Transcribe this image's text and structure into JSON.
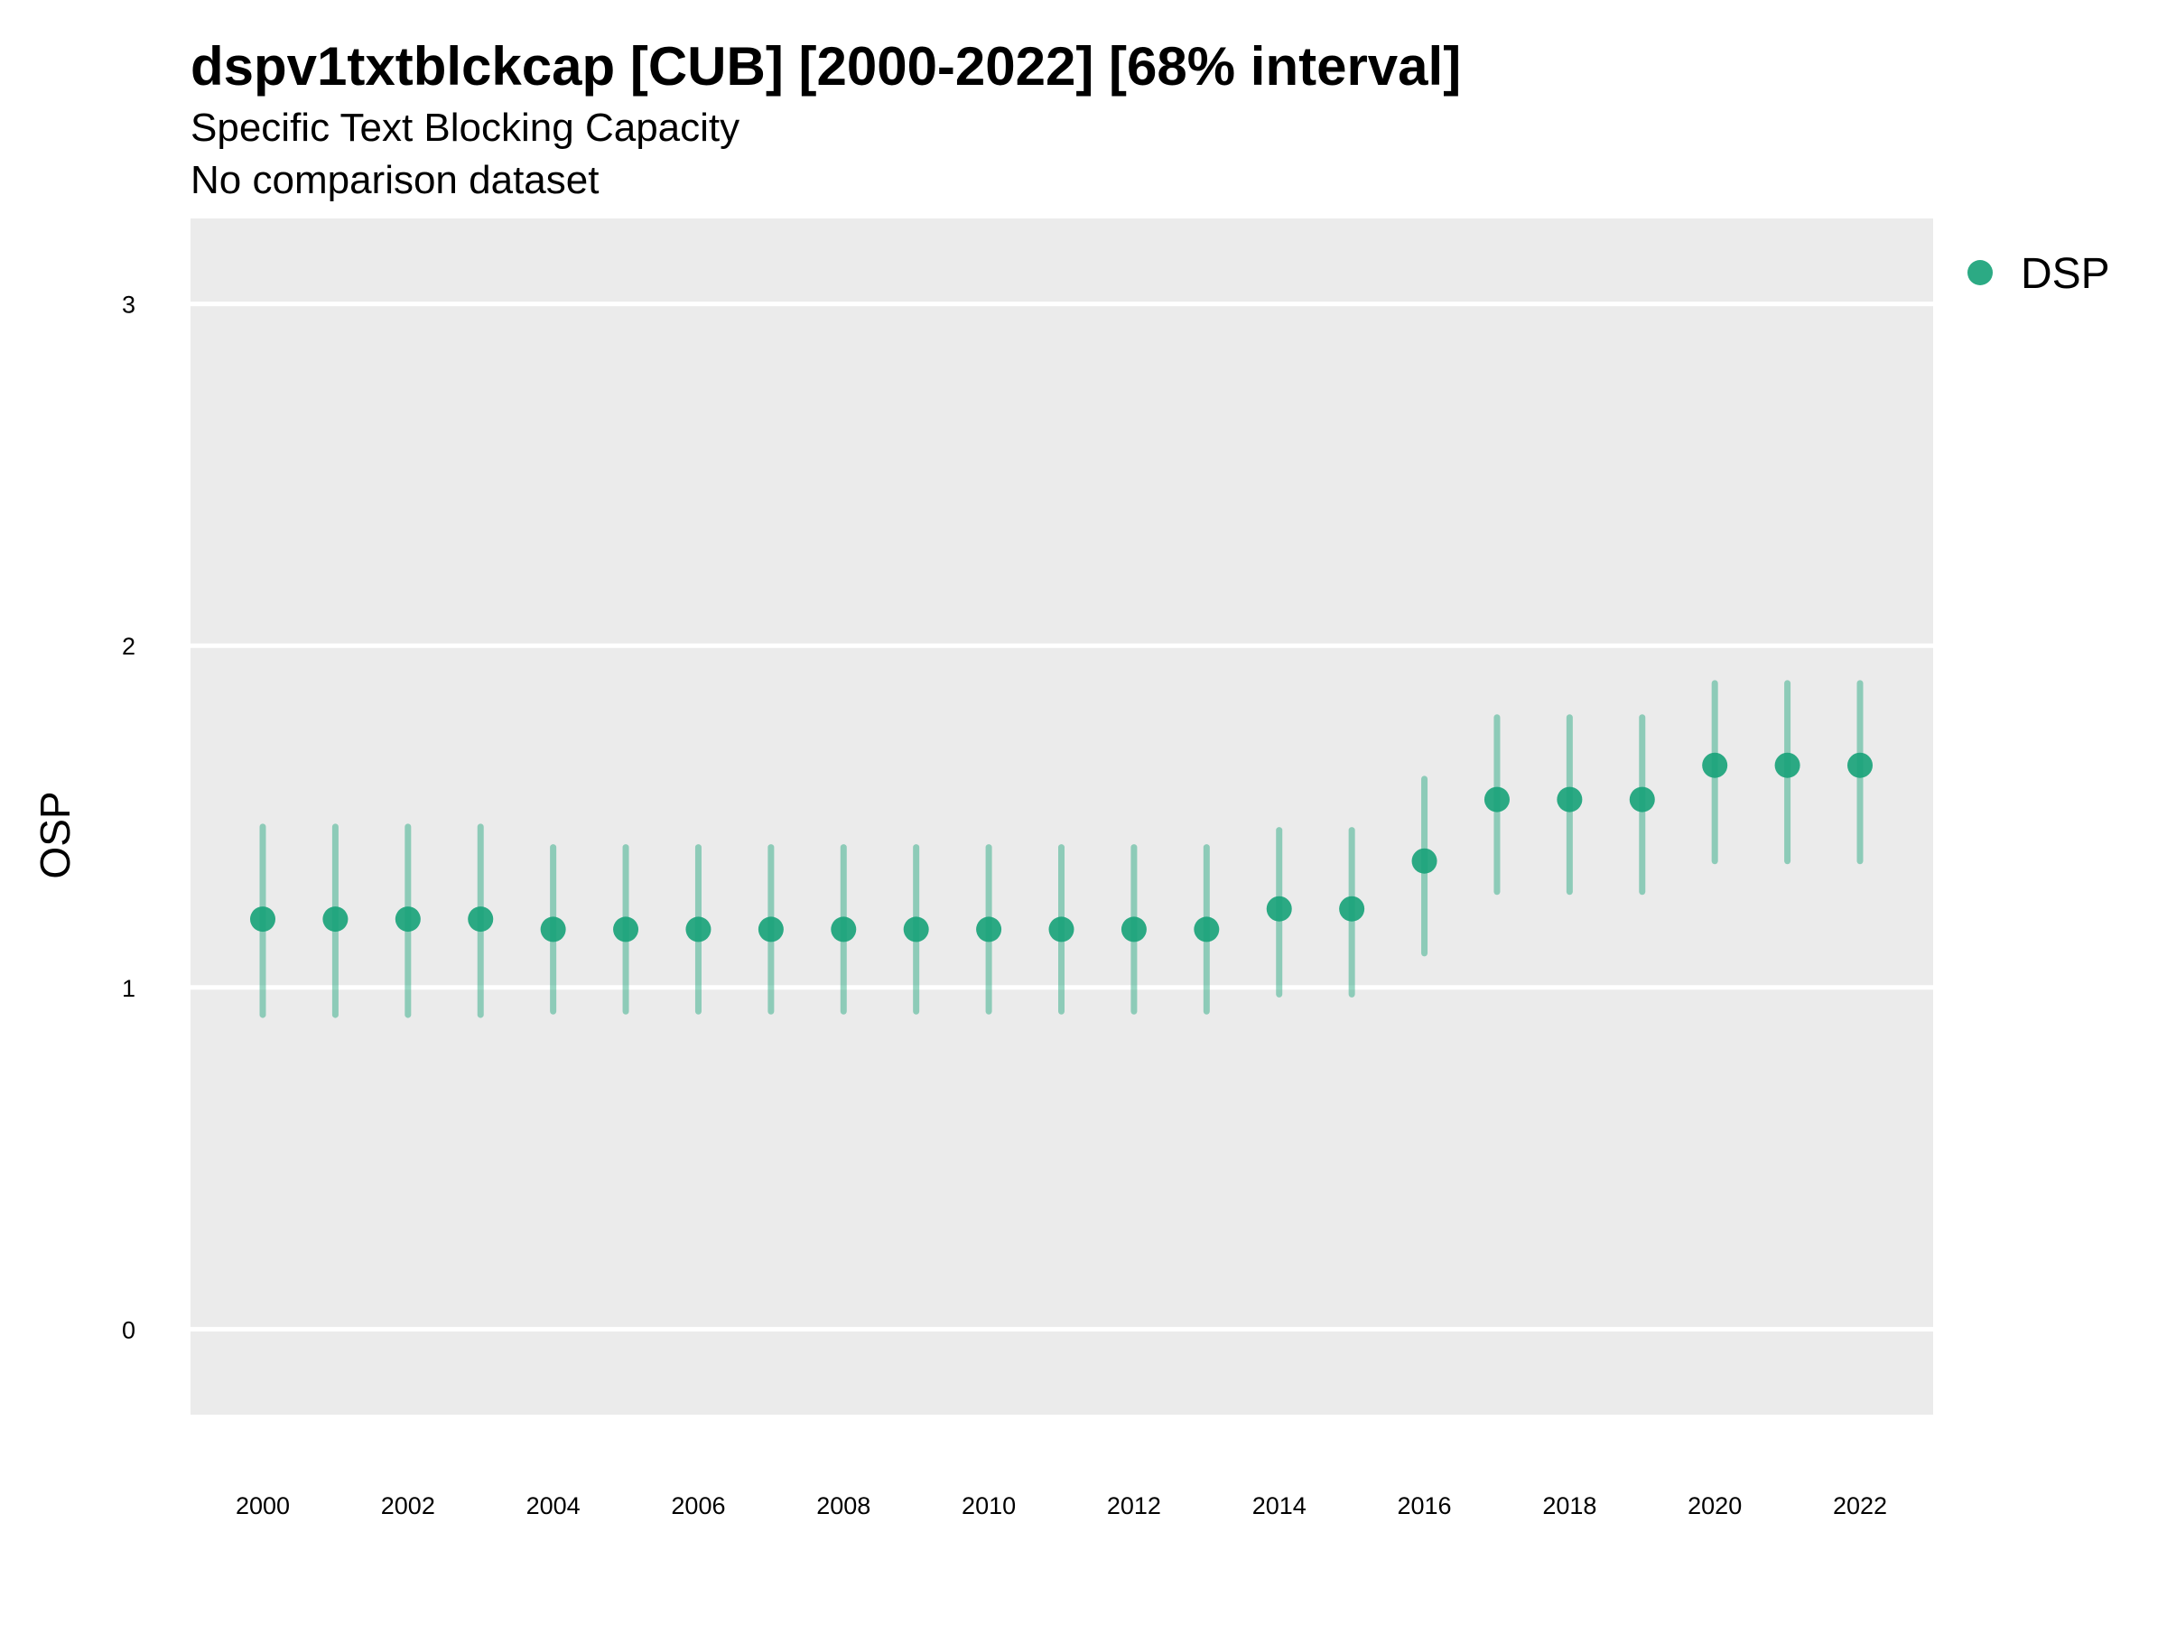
{
  "chart_data": {
    "type": "scatter",
    "title": "dspv1txtblckcap [CUB] [2000-2022] [68% interval]",
    "subtitle": "Specific Text Blocking Capacity",
    "caption_line": "No comparison dataset",
    "xlabel": "",
    "ylabel": "OSP",
    "ylim": [
      -0.25,
      3.25
    ],
    "y_ticks": [
      0,
      1,
      2,
      3
    ],
    "x_ticks": [
      2000,
      2002,
      2004,
      2006,
      2008,
      2010,
      2012,
      2014,
      2016,
      2018,
      2020,
      2022
    ],
    "grid": true,
    "legend_position": "top-right",
    "series": [
      {
        "name": "DSP",
        "color": "#1aa37a",
        "x": [
          2000,
          2001,
          2002,
          2003,
          2004,
          2005,
          2006,
          2007,
          2008,
          2009,
          2010,
          2011,
          2012,
          2013,
          2014,
          2015,
          2016,
          2017,
          2018,
          2019,
          2020,
          2021,
          2022
        ],
        "y": [
          1.2,
          1.2,
          1.2,
          1.2,
          1.17,
          1.17,
          1.17,
          1.17,
          1.17,
          1.17,
          1.17,
          1.17,
          1.17,
          1.17,
          1.23,
          1.23,
          1.37,
          1.55,
          1.55,
          1.55,
          1.65,
          1.65,
          1.65
        ],
        "lower": [
          0.92,
          0.92,
          0.92,
          0.92,
          0.93,
          0.93,
          0.93,
          0.93,
          0.93,
          0.93,
          0.93,
          0.93,
          0.93,
          0.93,
          0.98,
          0.98,
          1.1,
          1.28,
          1.28,
          1.28,
          1.37,
          1.37,
          1.37
        ],
        "upper": [
          1.47,
          1.47,
          1.47,
          1.47,
          1.41,
          1.41,
          1.41,
          1.41,
          1.41,
          1.41,
          1.41,
          1.41,
          1.41,
          1.41,
          1.46,
          1.46,
          1.61,
          1.79,
          1.79,
          1.79,
          1.89,
          1.89,
          1.89
        ]
      }
    ]
  }
}
